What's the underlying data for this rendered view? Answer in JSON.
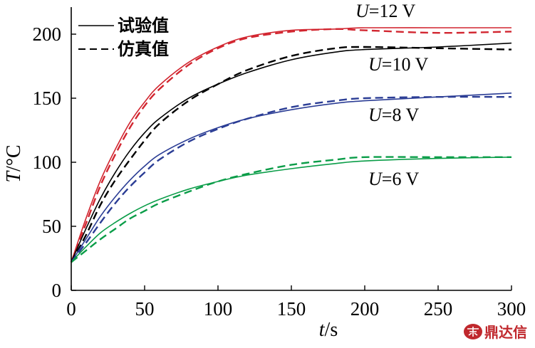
{
  "chart_data": {
    "type": "line",
    "xlabel_var": "t",
    "xlabel_unit": "/s",
    "ylabel_var": "T",
    "ylabel_unit": "/°C",
    "xlim": [
      0,
      300
    ],
    "ylim": [
      0,
      210
    ],
    "xticks": [
      "0",
      "50",
      "100",
      "150",
      "200",
      "250",
      "300"
    ],
    "yticks": [
      "0",
      "50",
      "100",
      "150",
      "200"
    ],
    "grid": false,
    "legend": {
      "position": "top-left",
      "entries": [
        {
          "label": "试验值",
          "style": "solid"
        },
        {
          "label": "仿真值",
          "style": "dashed"
        }
      ]
    },
    "curve_labels": [
      {
        "var": "U",
        "text": "=12 V",
        "color": "#d22630"
      },
      {
        "var": "U",
        "text": "=10 V",
        "color": "#000000"
      },
      {
        "var": "U",
        "text": "=8 V",
        "color": "#2b3d95"
      },
      {
        "var": "U",
        "text": "=6 V",
        "color": "#0a9d48"
      }
    ],
    "x": [
      0,
      10,
      20,
      30,
      40,
      50,
      60,
      80,
      100,
      120,
      150,
      180,
      200,
      250,
      300
    ],
    "series": [
      {
        "name": "U=12 V",
        "style": "solid",
        "color": "#d22630",
        "values": [
          22,
          56,
          86,
          110,
          131,
          147,
          160,
          178,
          190,
          198,
          203,
          204,
          205,
          205,
          205
        ]
      },
      {
        "name": "U=12 V",
        "style": "dashed",
        "color": "#d22630",
        "values": [
          22,
          52,
          82,
          106,
          127,
          144,
          157,
          176,
          189,
          197,
          202,
          204,
          203,
          201,
          202
        ]
      },
      {
        "name": "U=10 V",
        "style": "solid",
        "color": "#000000",
        "values": [
          22,
          48,
          72,
          92,
          109,
          123,
          134,
          150,
          161,
          170,
          180,
          186,
          188,
          190,
          193
        ]
      },
      {
        "name": "U=10 V",
        "style": "dashed",
        "color": "#000000",
        "values": [
          22,
          43,
          67,
          86,
          102,
          117,
          130,
          148,
          161,
          172,
          183,
          189,
          190,
          189,
          188
        ]
      },
      {
        "name": "U=8 V",
        "style": "solid",
        "color": "#2b3d95",
        "values": [
          22,
          40,
          58,
          73,
          86,
          97,
          106,
          118,
          127,
          134,
          141,
          146,
          148,
          151,
          154
        ]
      },
      {
        "name": "U=8 V",
        "style": "dashed",
        "color": "#2b3d95",
        "values": [
          22,
          37,
          53,
          68,
          81,
          92,
          102,
          116,
          126,
          134,
          143,
          148,
          150,
          151,
          151
        ]
      },
      {
        "name": "U=6 V",
        "style": "solid",
        "color": "#0a9d48",
        "values": [
          22,
          34,
          45,
          53,
          60,
          66,
          71,
          79,
          85,
          90,
          95,
          99,
          101,
          103,
          104
        ]
      },
      {
        "name": "U=6 V",
        "style": "dashed",
        "color": "#0a9d48",
        "values": [
          22,
          31,
          40,
          48,
          56,
          62,
          68,
          77,
          85,
          91,
          98,
          102,
          104,
          104,
          104
        ]
      }
    ]
  },
  "watermark": {
    "icon": "seal-logo-icon",
    "text": "鼎达信",
    "color": "#c0282d"
  }
}
